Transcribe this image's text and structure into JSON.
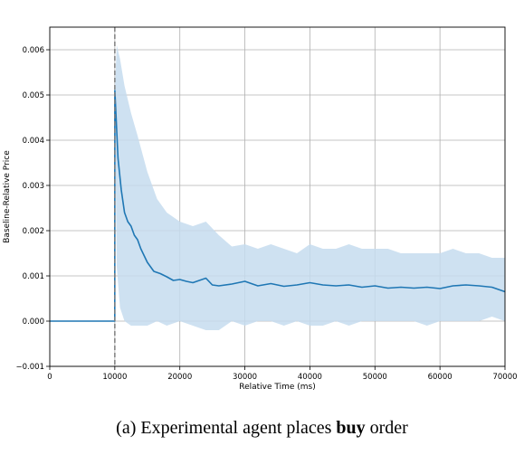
{
  "chart_data": {
    "type": "line",
    "xlabel": "Relative Time (ms)",
    "ylabel": "Baseline-Relative Price",
    "xlim": [
      0,
      70000
    ],
    "ylim": [
      -0.001,
      0.0065
    ],
    "xticks": [
      0,
      10000,
      20000,
      30000,
      40000,
      50000,
      60000,
      70000
    ],
    "xtick_labels": [
      "0",
      "10000",
      "20000",
      "30000",
      "40000",
      "50000",
      "60000",
      "70000"
    ],
    "yticks": [
      -0.001,
      0.0,
      0.001,
      0.002,
      0.003,
      0.004,
      0.005,
      0.006
    ],
    "ytick_labels": [
      "−0.001",
      "0.000",
      "0.001",
      "0.002",
      "0.003",
      "0.004",
      "0.005",
      "0.006"
    ],
    "grid": true,
    "event_line_x": 10000,
    "colors": {
      "line": "#1f77b4",
      "band": "#c6dcee",
      "event": "#808080",
      "grid": "#b0b0b0"
    },
    "series": [
      {
        "x": [
          0,
          9990,
          10000,
          10200,
          10500,
          11000,
          11500,
          12000,
          12500,
          13000,
          13500,
          14000,
          15000,
          16000,
          17000,
          18000,
          19000,
          20000,
          21000,
          22000,
          23000,
          24000,
          25000,
          26000,
          28000,
          30000,
          32000,
          34000,
          36000,
          38000,
          40000,
          42000,
          44000,
          46000,
          48000,
          50000,
          52000,
          54000,
          56000,
          58000,
          60000,
          62000,
          64000,
          66000,
          68000,
          69000,
          70000
        ],
        "values": [
          0.0,
          0.0,
          0.0051,
          0.0045,
          0.0036,
          0.0029,
          0.0024,
          0.0022,
          0.0021,
          0.0019,
          0.0018,
          0.0016,
          0.0013,
          0.0011,
          0.00105,
          0.00098,
          0.0009,
          0.00092,
          0.00088,
          0.00085,
          0.0009,
          0.00095,
          0.0008,
          0.00078,
          0.00082,
          0.00088,
          0.00078,
          0.00083,
          0.00077,
          0.0008,
          0.00085,
          0.0008,
          0.00078,
          0.0008,
          0.00075,
          0.00078,
          0.00073,
          0.00075,
          0.00073,
          0.00075,
          0.00072,
          0.00078,
          0.0008,
          0.00078,
          0.00075,
          0.0007,
          0.00065
        ]
      },
      {
        "x": [
          10000,
          10300,
          10800,
          11500,
          12500,
          13500,
          15000,
          16500,
          18000,
          20000,
          22000,
          24000,
          26000,
          28000,
          30000,
          32000,
          34000,
          36000,
          38000,
          40000,
          42000,
          44000,
          46000,
          48000,
          50000,
          52000,
          54000,
          56000,
          58000,
          60000,
          62000,
          64000,
          66000,
          68000,
          70000
        ],
        "upper": [
          0.0051,
          0.0061,
          0.0058,
          0.0052,
          0.0046,
          0.0041,
          0.0033,
          0.0027,
          0.0024,
          0.0022,
          0.0021,
          0.0022,
          0.0019,
          0.00165,
          0.0017,
          0.0016,
          0.0017,
          0.0016,
          0.0015,
          0.0017,
          0.0016,
          0.0016,
          0.0017,
          0.0016,
          0.0016,
          0.0016,
          0.0015,
          0.0015,
          0.0015,
          0.0015,
          0.0016,
          0.0015,
          0.0015,
          0.0014,
          0.0014
        ],
        "lower": [
          0.0051,
          0.0012,
          0.0003,
          0.0,
          -0.0001,
          -0.0001,
          -0.0001,
          0.0,
          -0.0001,
          0.0,
          -0.0001,
          -0.0002,
          -0.0002,
          0.0,
          -0.0001,
          0.0,
          0.0,
          -0.0001,
          0.0,
          -0.0001,
          -0.0001,
          0.0,
          -0.0001,
          0.0,
          0.0,
          0.0,
          0.0,
          0.0,
          -0.0001,
          0.0,
          0.0,
          0.0,
          0.0,
          0.0001,
          0.0
        ]
      }
    ]
  },
  "caption": {
    "prefix": "(a) Experimental agent places",
    "bold": "buy",
    "suffix": "order"
  }
}
